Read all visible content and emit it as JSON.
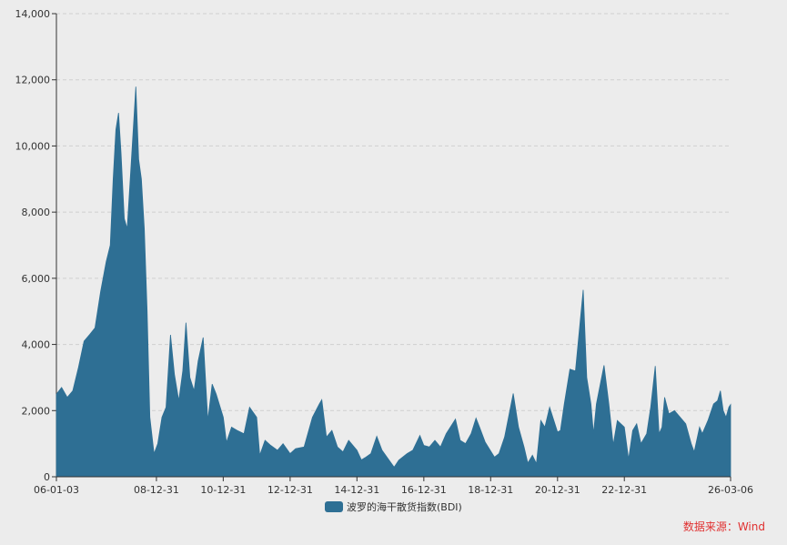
{
  "source_label": "数据来源：Wind",
  "chart_data": {
    "type": "area",
    "legend_position": "bottom-center",
    "grid": "horizontal-dashed",
    "colors": {
      "series": "#2e6f94",
      "grid": "#cfcfcf",
      "axis": "#333333",
      "source": "#e03030"
    },
    "xlim": [
      "2006-01-03",
      "2026-03-06"
    ],
    "ylim": [
      0,
      14000
    ],
    "yticks": [
      0,
      2000,
      4000,
      6000,
      8000,
      10000,
      12000,
      14000
    ],
    "ytick_labels": [
      "0",
      "2,000",
      "4,000",
      "6,000",
      "8,000",
      "10,000",
      "12,000",
      "14,000"
    ],
    "xticks": [
      {
        "date": "2006-01-03",
        "label": "06-01-03"
      },
      {
        "date": "2008-12-31",
        "label": "08-12-31"
      },
      {
        "date": "2010-12-31",
        "label": "10-12-31"
      },
      {
        "date": "2012-12-31",
        "label": "12-12-31"
      },
      {
        "date": "2014-12-31",
        "label": "14-12-31"
      },
      {
        "date": "2016-12-31",
        "label": "16-12-31"
      },
      {
        "date": "2018-12-31",
        "label": "18-12-31"
      },
      {
        "date": "2020-12-31",
        "label": "20-12-31"
      },
      {
        "date": "2022-12-31",
        "label": "22-12-31"
      },
      {
        "date": "2026-03-06",
        "label": "26-03-06"
      }
    ],
    "series": [
      {
        "name": "波罗的海干散货指数(BDI)",
        "points": [
          [
            "2006-01-03",
            2500
          ],
          [
            "2006-03-01",
            2700
          ],
          [
            "2006-05-01",
            2400
          ],
          [
            "2006-07-01",
            2600
          ],
          [
            "2006-09-01",
            3300
          ],
          [
            "2006-11-01",
            4100
          ],
          [
            "2007-01-01",
            4300
          ],
          [
            "2007-03-01",
            4500
          ],
          [
            "2007-05-01",
            5600
          ],
          [
            "2007-07-01",
            6500
          ],
          [
            "2007-08-15",
            7000
          ],
          [
            "2007-09-15",
            9000
          ],
          [
            "2007-10-15",
            10500
          ],
          [
            "2007-11-13",
            11000
          ],
          [
            "2007-12-10",
            9800
          ],
          [
            "2008-01-15",
            7800
          ],
          [
            "2008-02-15",
            7500
          ],
          [
            "2008-03-15",
            8800
          ],
          [
            "2008-04-15",
            10200
          ],
          [
            "2008-05-20",
            11790
          ],
          [
            "2008-06-20",
            9600
          ],
          [
            "2008-07-20",
            9000
          ],
          [
            "2008-08-20",
            7500
          ],
          [
            "2008-09-20",
            5000
          ],
          [
            "2008-10-20",
            1800
          ],
          [
            "2008-12-05",
            700
          ],
          [
            "2009-01-15",
            1000
          ],
          [
            "2009-03-01",
            1800
          ],
          [
            "2009-04-15",
            2100
          ],
          [
            "2009-06-03",
            4290
          ],
          [
            "2009-07-15",
            3100
          ],
          [
            "2009-09-01",
            2300
          ],
          [
            "2009-10-15",
            3200
          ],
          [
            "2009-11-19",
            4660
          ],
          [
            "2009-12-31",
            3000
          ],
          [
            "2010-02-15",
            2600
          ],
          [
            "2010-04-01",
            3500
          ],
          [
            "2010-05-26",
            4210
          ],
          [
            "2010-07-15",
            1700
          ],
          [
            "2010-09-01",
            2800
          ],
          [
            "2010-10-15",
            2500
          ],
          [
            "2010-12-31",
            1800
          ],
          [
            "2011-02-04",
            1040
          ],
          [
            "2011-04-01",
            1500
          ],
          [
            "2011-06-01",
            1400
          ],
          [
            "2011-08-15",
            1300
          ],
          [
            "2011-10-15",
            2100
          ],
          [
            "2011-12-31",
            1800
          ],
          [
            "2012-02-03",
            650
          ],
          [
            "2012-04-01",
            1100
          ],
          [
            "2012-06-01",
            950
          ],
          [
            "2012-08-15",
            800
          ],
          [
            "2012-10-15",
            1000
          ],
          [
            "2012-12-31",
            700
          ],
          [
            "2013-03-01",
            850
          ],
          [
            "2013-06-01",
            900
          ],
          [
            "2013-09-01",
            1800
          ],
          [
            "2013-11-15",
            2200
          ],
          [
            "2013-12-12",
            2330
          ],
          [
            "2014-02-01",
            1200
          ],
          [
            "2014-04-01",
            1400
          ],
          [
            "2014-06-01",
            900
          ],
          [
            "2014-08-01",
            750
          ],
          [
            "2014-10-01",
            1100
          ],
          [
            "2014-12-31",
            800
          ],
          [
            "2015-02-18",
            509
          ],
          [
            "2015-04-01",
            580
          ],
          [
            "2015-06-01",
            700
          ],
          [
            "2015-08-05",
            1220
          ],
          [
            "2015-10-01",
            800
          ],
          [
            "2016-02-10",
            290
          ],
          [
            "2016-04-01",
            500
          ],
          [
            "2016-07-01",
            700
          ],
          [
            "2016-09-01",
            800
          ],
          [
            "2016-11-18",
            1250
          ],
          [
            "2016-12-31",
            950
          ],
          [
            "2017-03-01",
            900
          ],
          [
            "2017-05-01",
            1100
          ],
          [
            "2017-07-01",
            900
          ],
          [
            "2017-09-01",
            1300
          ],
          [
            "2017-12-12",
            1740
          ],
          [
            "2018-02-01",
            1100
          ],
          [
            "2018-04-01",
            1000
          ],
          [
            "2018-06-01",
            1300
          ],
          [
            "2018-07-24",
            1770
          ],
          [
            "2018-09-01",
            1500
          ],
          [
            "2018-11-01",
            1050
          ],
          [
            "2019-02-11",
            595
          ],
          [
            "2019-04-01",
            700
          ],
          [
            "2019-06-01",
            1200
          ],
          [
            "2019-09-04",
            2520
          ],
          [
            "2019-11-01",
            1500
          ],
          [
            "2019-12-31",
            900
          ],
          [
            "2020-02-10",
            415
          ],
          [
            "2020-04-01",
            650
          ],
          [
            "2020-05-14",
            395
          ],
          [
            "2020-07-01",
            1700
          ],
          [
            "2020-08-15",
            1500
          ],
          [
            "2020-10-06",
            2100
          ],
          [
            "2020-12-31",
            1350
          ],
          [
            "2021-02-01",
            1400
          ],
          [
            "2021-03-15",
            2200
          ],
          [
            "2021-05-15",
            3250
          ],
          [
            "2021-07-15",
            3200
          ],
          [
            "2021-10-07",
            5650
          ],
          [
            "2021-11-15",
            3000
          ],
          [
            "2021-12-31",
            2200
          ],
          [
            "2022-01-28",
            1300
          ],
          [
            "2022-03-01",
            2200
          ],
          [
            "2022-05-23",
            3370
          ],
          [
            "2022-07-15",
            2200
          ],
          [
            "2022-08-31",
            965
          ],
          [
            "2022-10-15",
            1700
          ],
          [
            "2022-12-31",
            1500
          ],
          [
            "2023-02-16",
            530
          ],
          [
            "2023-04-01",
            1400
          ],
          [
            "2023-05-15",
            1600
          ],
          [
            "2023-07-01",
            1000
          ],
          [
            "2023-09-01",
            1300
          ],
          [
            "2023-10-15",
            2100
          ],
          [
            "2023-12-04",
            3346
          ],
          [
            "2024-01-15",
            1300
          ],
          [
            "2024-02-15",
            1500
          ],
          [
            "2024-03-15",
            2400
          ],
          [
            "2024-05-01",
            1900
          ],
          [
            "2024-07-01",
            2000
          ],
          [
            "2024-09-01",
            1800
          ],
          [
            "2024-11-01",
            1600
          ],
          [
            "2024-12-31",
            1000
          ],
          [
            "2025-02-01",
            750
          ],
          [
            "2025-04-01",
            1500
          ],
          [
            "2025-05-01",
            1300
          ],
          [
            "2025-07-01",
            1700
          ],
          [
            "2025-09-01",
            2200
          ],
          [
            "2025-10-15",
            2300
          ],
          [
            "2025-11-15",
            2600
          ],
          [
            "2025-12-15",
            2000
          ],
          [
            "2026-01-15",
            1800
          ],
          [
            "2026-02-15",
            2100
          ],
          [
            "2026-03-06",
            2180
          ]
        ]
      }
    ]
  }
}
